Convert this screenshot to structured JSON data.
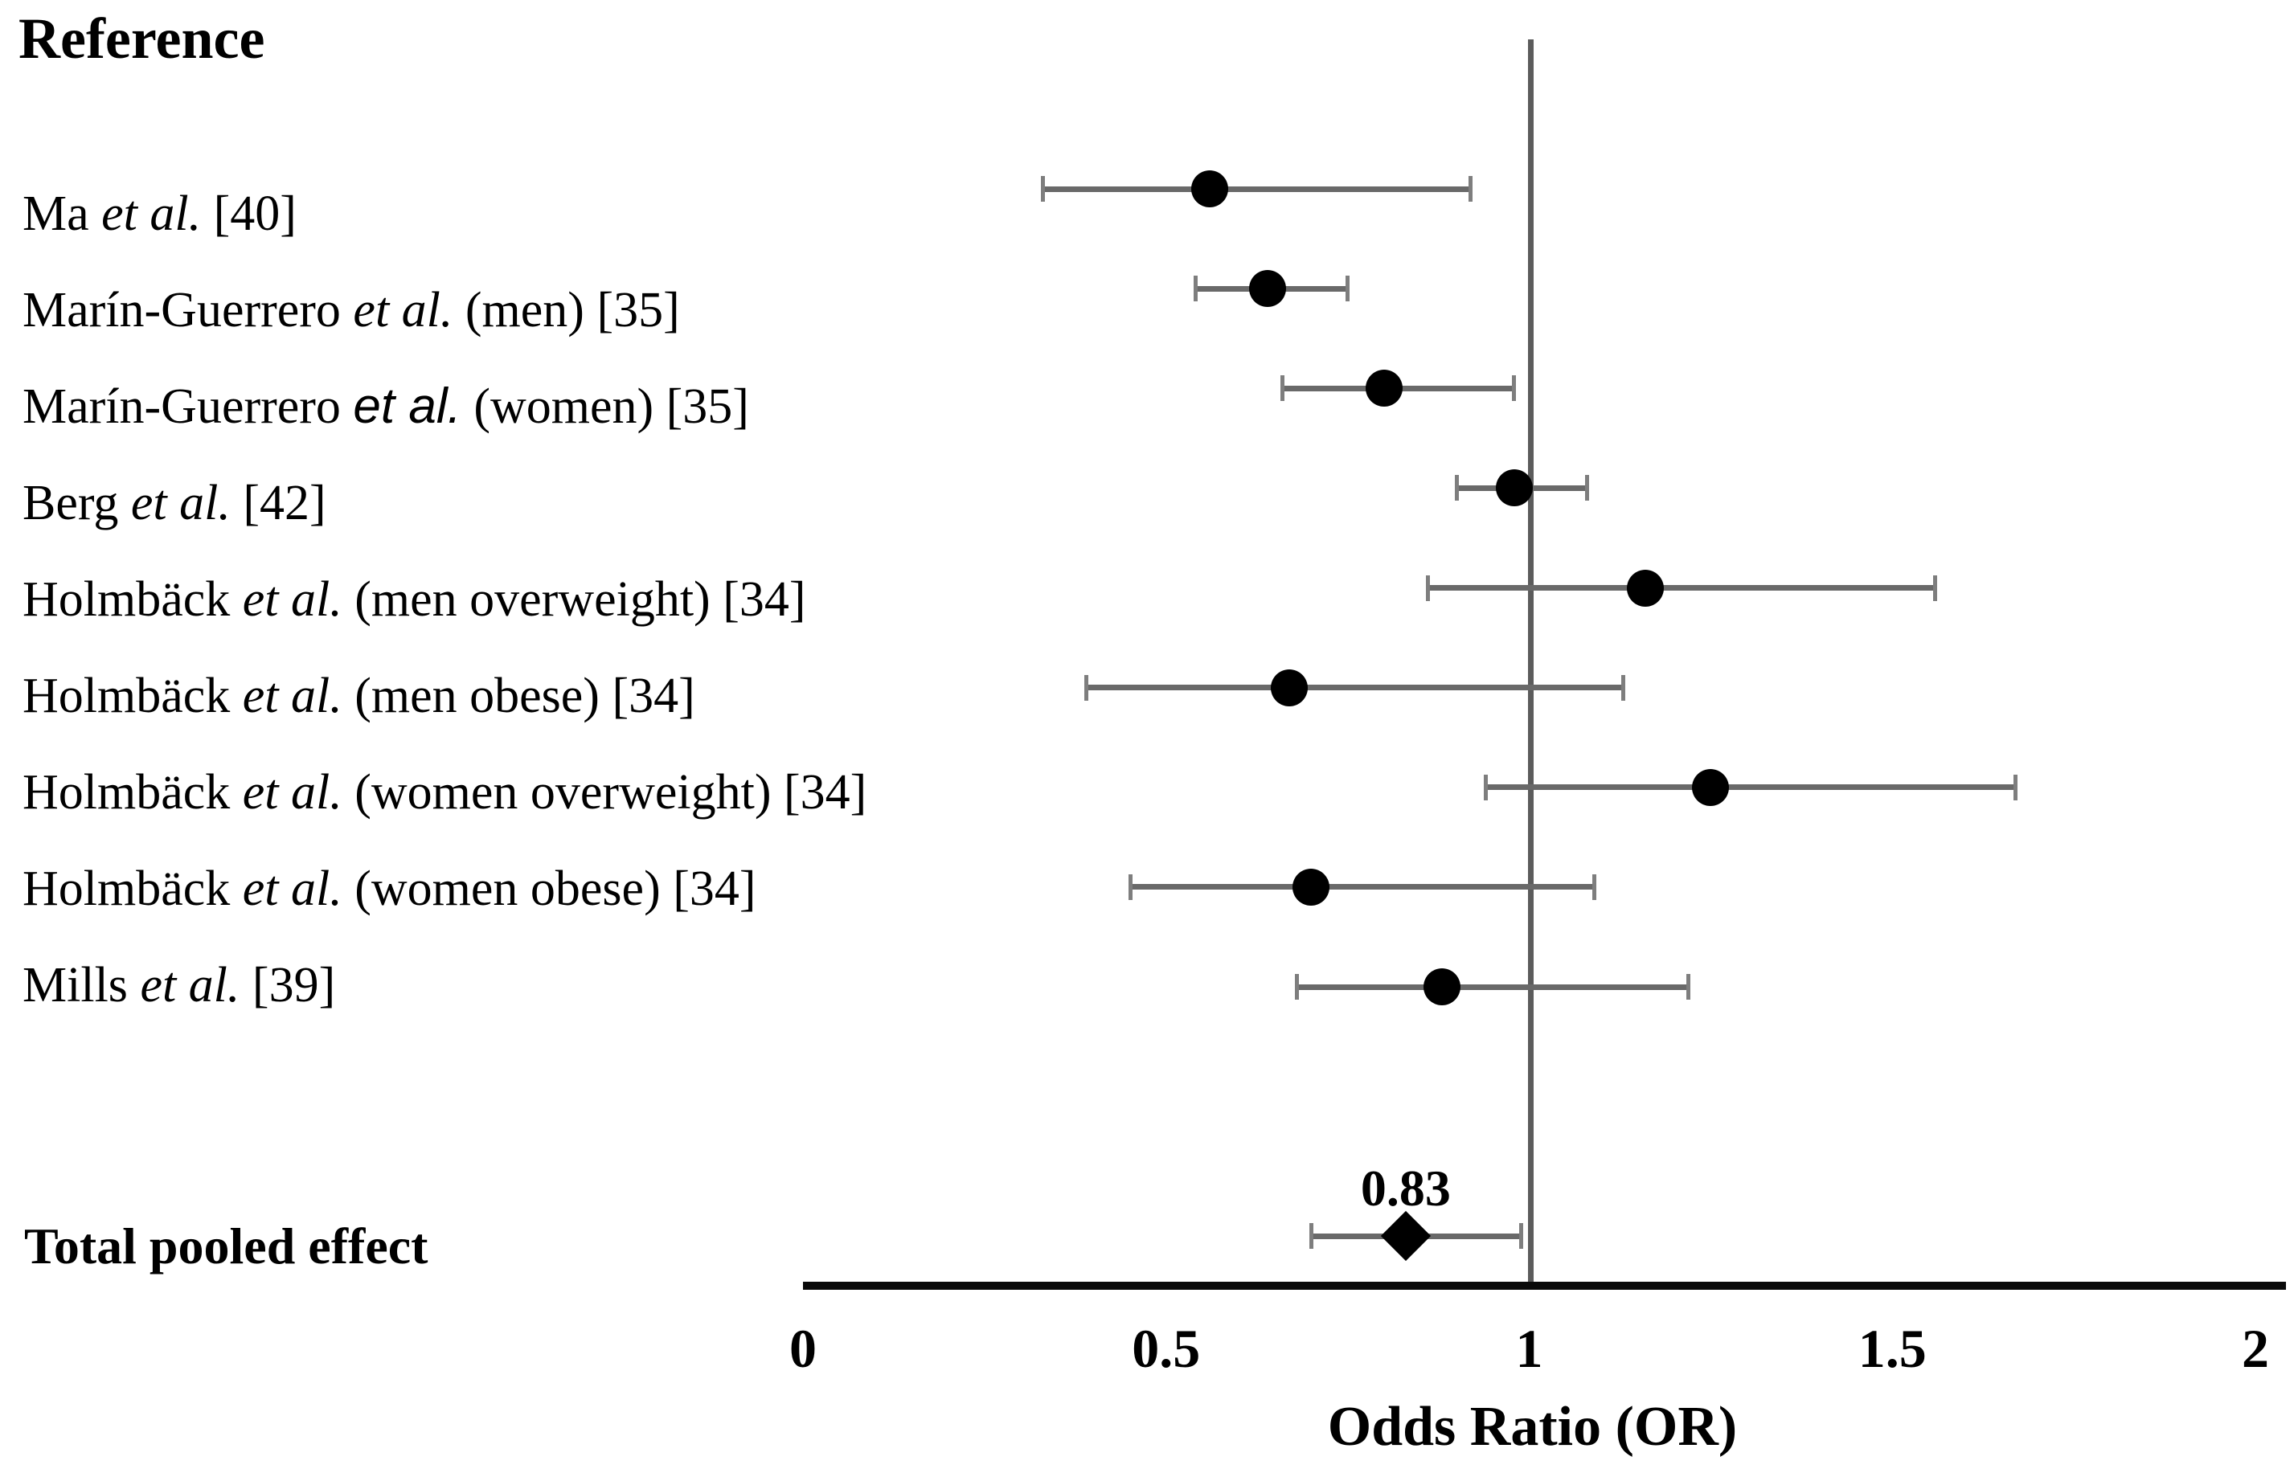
{
  "title": "Reference",
  "pooled": {
    "label": "Total pooled effect",
    "value_label": "0.83"
  },
  "x_axis": {
    "label": "Odds Ratio (OR)",
    "ticks": [
      "0",
      "0.5",
      "1",
      "1.5",
      "2"
    ]
  },
  "chart_data": {
    "type": "forest",
    "title": "Reference",
    "xlabel": "Odds Ratio (OR)",
    "xlim": [
      0,
      2
    ],
    "x_ticks": [
      0,
      0.5,
      1,
      1.5,
      2
    ],
    "reference_line": 1,
    "grid": false,
    "studies": [
      {
        "prefix": "Ma ",
        "etal": "et al.",
        "suffix": " [40]",
        "etal_font": "serif",
        "or": 0.56,
        "ci_low": 0.33,
        "ci_high": 0.92
      },
      {
        "prefix": "Marín-Guerrero ",
        "etal": "et al.",
        "suffix": " (men) [35]",
        "etal_font": "serif",
        "or": 0.64,
        "ci_low": 0.54,
        "ci_high": 0.75
      },
      {
        "prefix": "Marín-Guerrero ",
        "etal": "et al.",
        "suffix": " (women) [35]",
        "etal_font": "sans",
        "or": 0.8,
        "ci_low": 0.66,
        "ci_high": 0.98
      },
      {
        "prefix": "Berg ",
        "etal": "et al.",
        "suffix": " [42]",
        "etal_font": "serif",
        "or": 0.98,
        "ci_low": 0.9,
        "ci_high": 1.08
      },
      {
        "prefix": "Holmbäck ",
        "etal": "et al.",
        "suffix": " (men overweight) [34]",
        "etal_font": "serif",
        "or": 1.16,
        "ci_low": 0.86,
        "ci_high": 1.56
      },
      {
        "prefix": "Holmbäck ",
        "etal": "et al.",
        "suffix": " (men obese) [34]",
        "etal_font": "serif",
        "or": 0.67,
        "ci_low": 0.39,
        "ci_high": 1.13
      },
      {
        "prefix": "Holmbäck ",
        "etal": "et al.",
        "suffix": " (women overweight) [34]",
        "etal_font": "serif",
        "or": 1.25,
        "ci_low": 0.94,
        "ci_high": 1.67
      },
      {
        "prefix": "Holmbäck ",
        "etal": "et al.",
        "suffix": " (women obese) [34]",
        "etal_font": "serif",
        "or": 0.7,
        "ci_low": 0.45,
        "ci_high": 1.09
      },
      {
        "prefix": "Mills ",
        "etal": "et al.",
        "suffix": " [39]",
        "etal_font": "serif",
        "or": 0.88,
        "ci_low": 0.68,
        "ci_high": 1.22
      }
    ],
    "pooled_effect": {
      "label": "Total pooled effect",
      "or": 0.83,
      "ci_low": 0.7,
      "ci_high": 0.99,
      "value_label": "0.83"
    },
    "colors": {
      "marker": "#000000",
      "error_bar": "#696969",
      "error_cap": "#7e7e7e",
      "reference_line": "#5c5c5c",
      "axis_line": "#0a0a0a"
    }
  }
}
